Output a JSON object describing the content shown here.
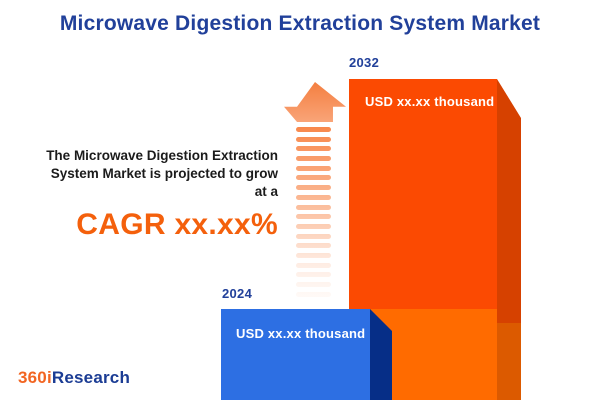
{
  "title": "Microwave Digestion Extraction System Market",
  "description": {
    "line1": "The Microwave Digestion Extraction",
    "line2": "System Market is projected to grow",
    "line3": "at a",
    "cagr": "CAGR xx.xx%"
  },
  "chart": {
    "bars": [
      {
        "year": "2024",
        "value_label": "USD xx.xx thousand",
        "face_color": "#2D6FE3",
        "side_color": "#062E87"
      },
      {
        "year": "2032",
        "value_label": "USD xx.xx thousand",
        "face_color": "#FB4A02",
        "side_color": "#D64100"
      }
    ]
  },
  "chart_data": {
    "type": "bar",
    "title": "Microwave Digestion Extraction System Market",
    "categories": [
      "2024",
      "2032"
    ],
    "values": [
      null,
      null
    ],
    "value_labels": [
      "USD xx.xx thousand",
      "USD xx.xx thousand"
    ],
    "annotations": [
      "The Microwave Digestion Extraction System Market is projected to grow at a CAGR xx.xx%"
    ],
    "legend": "none",
    "grid": "off"
  },
  "colors": {
    "title_navy": "#21409A",
    "cagr_orange": "#F4600C",
    "arrow_orange": "#F8874A",
    "bar_2032_top": "#FB4A02",
    "bar_2032_bottom": "#FF6B00",
    "bar_2024_blue": "#2D6FE3",
    "logo_orange": "#F26522",
    "logo_navy": "#1B3C94"
  },
  "logo": {
    "prefix": "360i",
    "suffix": "Research"
  }
}
